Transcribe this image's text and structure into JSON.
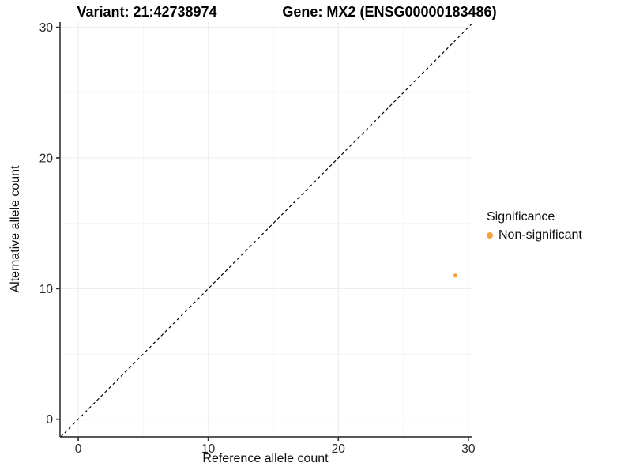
{
  "header": {
    "title_left": "Variant: 21:42738974",
    "title_right": "Gene: MX2 (ENSG00000183486)"
  },
  "chart_data": {
    "type": "scatter",
    "title_left": "Variant: 21:42738974",
    "title_right": "Gene: MX2 (ENSG00000183486)",
    "xlabel": "Reference allele count",
    "ylabel": "Alternative allele count",
    "xlim": [
      -1.4,
      30.25
    ],
    "ylim": [
      -1.35,
      30.4
    ],
    "x_ticks": [
      0,
      10,
      20,
      30
    ],
    "y_ticks": [
      0,
      10,
      20,
      30
    ],
    "x_minor_ticks": [
      5,
      15,
      25
    ],
    "y_minor_ticks": [
      5,
      15,
      25
    ],
    "grid": "major and minor gridlines, very light gray, white panel background",
    "identity_line": {
      "style": "dashed",
      "color": "#000000",
      "from": -1.35,
      "to": 30.25
    },
    "series": [
      {
        "name": "Non-significant",
        "color": "#F9A03F",
        "points": [
          {
            "x": 29,
            "y": 11
          }
        ]
      }
    ],
    "legend": {
      "title": "Significance",
      "position": "right-middle",
      "entries": [
        {
          "label": "Non-significant",
          "color": "#F9A03F"
        }
      ]
    }
  },
  "colors": {
    "background": "#ffffff",
    "axis_line": "#404040",
    "tick_mark": "#333333",
    "tick_label": "#262626",
    "grid_major": "#ececec",
    "grid_minor": "#f6f6f6",
    "identity_line": "#000000",
    "point": "#F9A03F"
  }
}
